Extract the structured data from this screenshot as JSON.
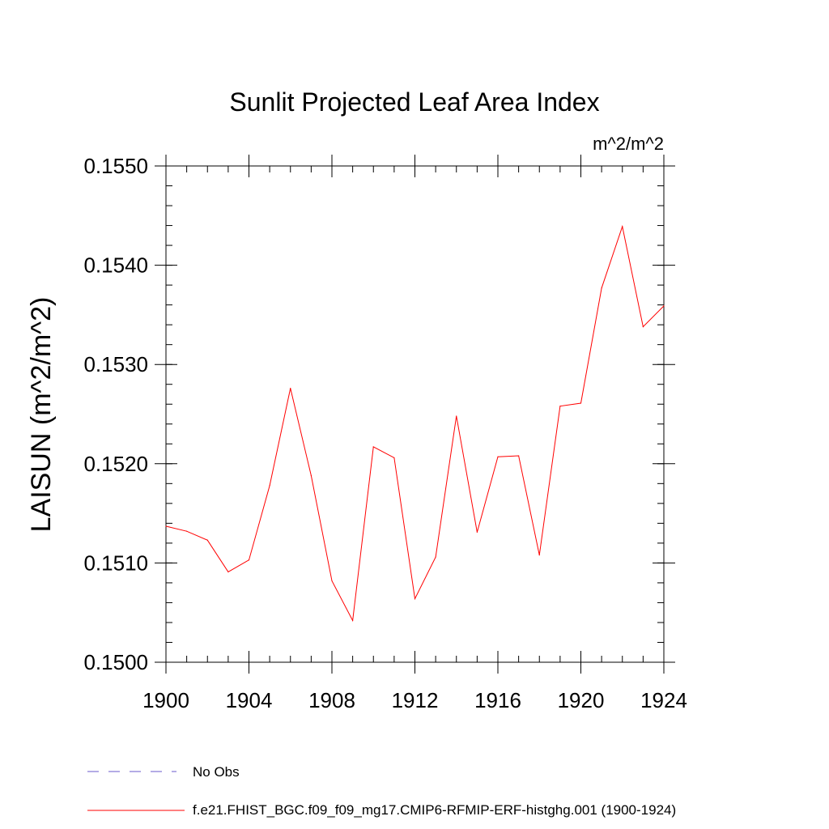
{
  "chart_data": {
    "type": "line",
    "title": "Sunlit Projected Leaf Area Index",
    "units": "m^2/m^2",
    "xlabel": "",
    "ylabel": "LAISUN  (m^2/m^2)",
    "xlim": [
      1900,
      1924
    ],
    "ylim": [
      0.15,
      0.155
    ],
    "x_ticks": [
      1900,
      1904,
      1908,
      1912,
      1916,
      1920,
      1924
    ],
    "x_tick_labels": [
      "1900",
      "1904",
      "1908",
      "1912",
      "1916",
      "1920",
      "1924"
    ],
    "y_ticks": [
      0.15,
      0.151,
      0.152,
      0.153,
      0.154,
      0.155
    ],
    "y_tick_labels": [
      "0.1500",
      "0.1510",
      "0.1520",
      "0.1530",
      "0.1540",
      "0.1550"
    ],
    "x_minor_step": 1,
    "y_minor_step": 0.0002,
    "grid": false,
    "series": [
      {
        "name": "f.e21.FHIST_BGC.f09_f09_mg17.CMIP6-RFMIP-ERF-histghg.001 (1900-1924)",
        "color": "#ff0000",
        "style": "solid",
        "x": [
          1900,
          1901,
          1902,
          1903,
          1904,
          1905,
          1906,
          1907,
          1908,
          1909,
          1910,
          1911,
          1912,
          1913,
          1914,
          1915,
          1916,
          1917,
          1918,
          1919,
          1920,
          1921,
          1922,
          1923,
          1924
        ],
        "values": [
          0.15137,
          0.15132,
          0.15123,
          0.15091,
          0.15103,
          0.15178,
          0.15276,
          0.15188,
          0.15082,
          0.15042,
          0.15217,
          0.15206,
          0.15064,
          0.15106,
          0.15248,
          0.15131,
          0.15207,
          0.15208,
          0.15108,
          0.15258,
          0.15261,
          0.15377,
          0.15439,
          0.15338,
          0.15359
        ]
      }
    ],
    "legend": {
      "position": "bottom-left",
      "entries": [
        {
          "label": "No Obs",
          "color": "#6a5acd",
          "style": "dashed"
        },
        {
          "label": "f.e21.FHIST_BGC.f09_f09_mg17.CMIP6-RFMIP-ERF-histghg.001 (1900-1924)",
          "color": "#ff0000",
          "style": "solid"
        }
      ]
    }
  }
}
